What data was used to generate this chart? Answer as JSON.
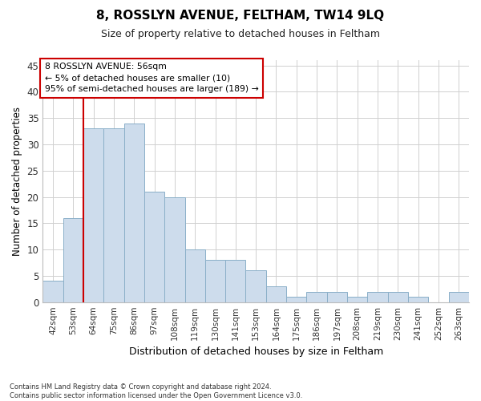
{
  "title": "8, ROSSLYN AVENUE, FELTHAM, TW14 9LQ",
  "subtitle": "Size of property relative to detached houses in Feltham",
  "xlabel": "Distribution of detached houses by size in Feltham",
  "ylabel": "Number of detached properties",
  "categories": [
    "42sqm",
    "53sqm",
    "64sqm",
    "75sqm",
    "86sqm",
    "97sqm",
    "108sqm",
    "119sqm",
    "130sqm",
    "141sqm",
    "153sqm",
    "164sqm",
    "175sqm",
    "186sqm",
    "197sqm",
    "208sqm",
    "219sqm",
    "230sqm",
    "241sqm",
    "252sqm",
    "263sqm"
  ],
  "values": [
    4,
    16,
    33,
    33,
    34,
    21,
    20,
    10,
    8,
    8,
    6,
    3,
    1,
    2,
    2,
    1,
    2,
    2,
    1,
    0,
    2
  ],
  "bar_color": "#cddcec",
  "bar_edge_color": "#8aafc8",
  "bar_edge_width": 0.7,
  "vline_color": "#cc0000",
  "vline_x": 1.5,
  "annotation_line1": "8 ROSSLYN AVENUE: 56sqm",
  "annotation_line2": "← 5% of detached houses are smaller (10)",
  "annotation_line3": "95% of semi-detached houses are larger (189) →",
  "annotation_box_color": "#ffffff",
  "annotation_box_edge": "#cc0000",
  "ylim": [
    0,
    46
  ],
  "yticks": [
    0,
    5,
    10,
    15,
    20,
    25,
    30,
    35,
    40,
    45
  ],
  "grid_color": "#d0d0d0",
  "footnote": "Contains HM Land Registry data © Crown copyright and database right 2024.\nContains public sector information licensed under the Open Government Licence v3.0.",
  "bg_color": "#ffffff",
  "plot_bg_color": "#ffffff"
}
